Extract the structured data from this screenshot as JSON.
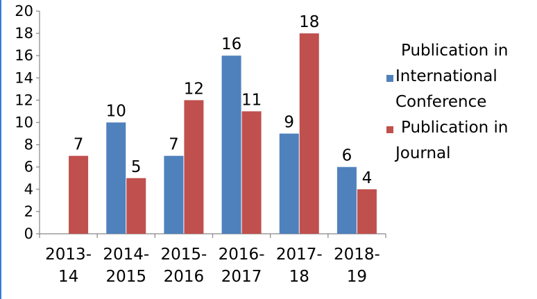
{
  "chart_data": {
    "type": "bar",
    "categories": [
      [
        "2013-",
        "14"
      ],
      [
        "2014-",
        "2015"
      ],
      [
        "2015-",
        "2016"
      ],
      [
        "2016-",
        "2017"
      ],
      [
        "2017-",
        "18"
      ],
      [
        "2018-",
        "19"
      ]
    ],
    "series": [
      {
        "name": [
          "Publication in",
          "International",
          "Conference"
        ],
        "color": "#4f81bd",
        "values": [
          null,
          10,
          7,
          16,
          9,
          6
        ]
      },
      {
        "name": [
          "Publication in",
          "Journal"
        ],
        "color": "#c0504d",
        "values": [
          7,
          5,
          12,
          11,
          18,
          4
        ]
      }
    ],
    "ylim": [
      0,
      20
    ],
    "yticks": [
      0,
      2,
      4,
      6,
      8,
      10,
      12,
      14,
      16,
      18,
      20
    ],
    "data_labels": true,
    "grid": false,
    "legend_position": "right"
  }
}
